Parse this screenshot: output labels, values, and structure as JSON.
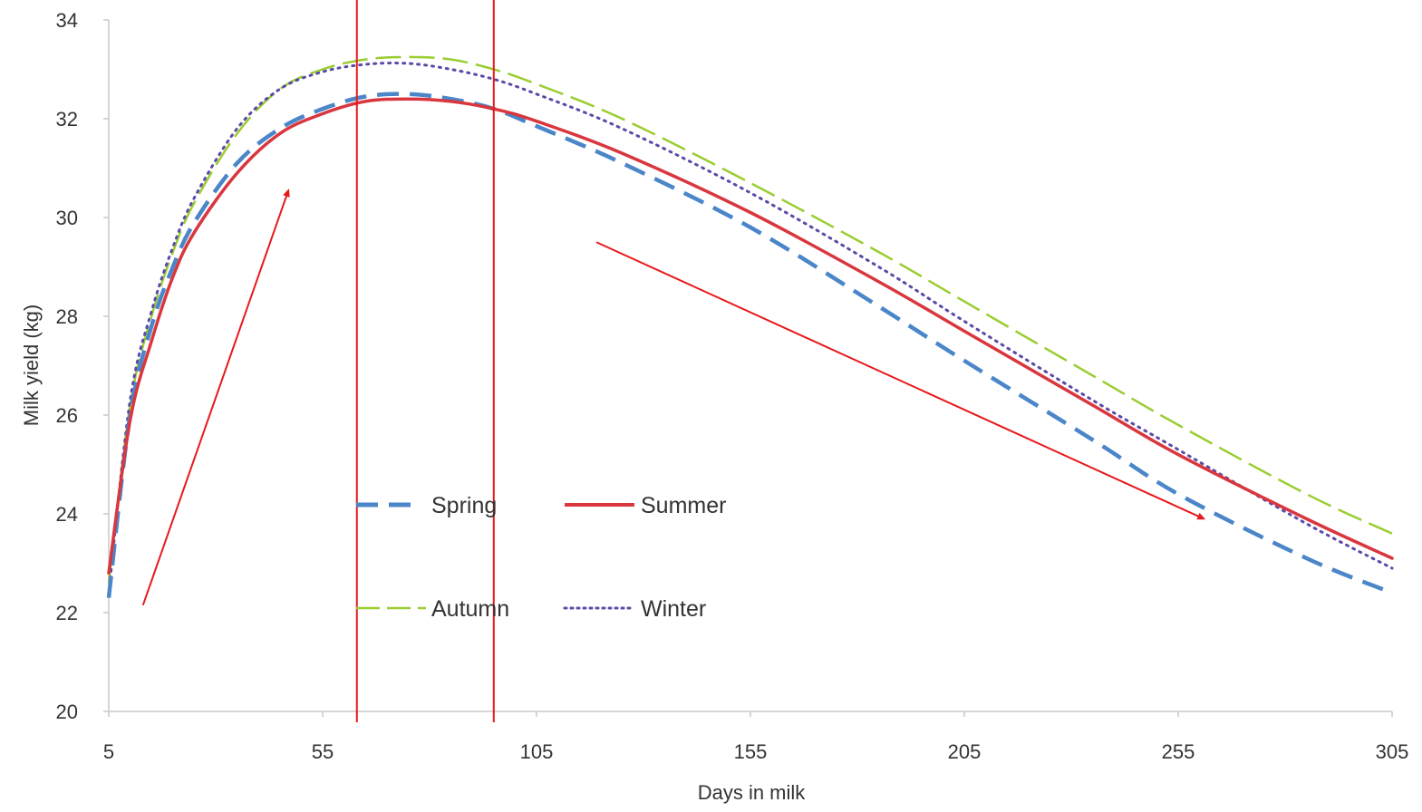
{
  "chart_data": {
    "type": "line",
    "xlabel": "Days in milk",
    "ylabel": "Milk yield (kg)",
    "xlim": [
      5,
      305
    ],
    "ylim": [
      20,
      34
    ],
    "x_ticks": [
      5,
      55,
      105,
      155,
      205,
      255,
      305
    ],
    "y_ticks": [
      20,
      22,
      24,
      26,
      28,
      30,
      32,
      34
    ],
    "grid": false,
    "legend_position": "center-left",
    "x": [
      5,
      10,
      15,
      20,
      25,
      35,
      45,
      55,
      65,
      75,
      85,
      95,
      105,
      125,
      155,
      185,
      205,
      235,
      255,
      285,
      305
    ],
    "series": [
      {
        "name": "Spring",
        "color": "#4a86c8",
        "style": "dashed",
        "values": [
          22.3,
          26.0,
          27.8,
          29.0,
          29.9,
          31.1,
          31.8,
          32.2,
          32.45,
          32.5,
          32.4,
          32.2,
          31.85,
          31.1,
          29.8,
          28.2,
          27.1,
          25.5,
          24.4,
          23.1,
          22.4
        ]
      },
      {
        "name": "Summer",
        "color": "#d9363e",
        "style": "solid",
        "values": [
          22.8,
          25.9,
          27.5,
          28.8,
          29.7,
          30.9,
          31.7,
          32.1,
          32.35,
          32.4,
          32.35,
          32.2,
          31.95,
          31.3,
          30.1,
          28.7,
          27.7,
          26.2,
          25.2,
          23.9,
          23.1
        ]
      },
      {
        "name": "Autumn",
        "color": "#9acd32",
        "style": "longdash",
        "values": [
          22.6,
          26.2,
          28.0,
          29.3,
          30.3,
          31.7,
          32.6,
          33.0,
          33.2,
          33.25,
          33.2,
          33.0,
          32.7,
          32.0,
          30.7,
          29.3,
          28.3,
          26.8,
          25.8,
          24.4,
          23.6
        ]
      },
      {
        "name": "Winter",
        "color": "#5b4aa8",
        "style": "dotted",
        "values": [
          22.4,
          26.3,
          28.1,
          29.4,
          30.4,
          31.8,
          32.6,
          32.95,
          33.1,
          33.12,
          33.0,
          32.8,
          32.5,
          31.8,
          30.5,
          29.0,
          27.9,
          26.3,
          25.3,
          23.8,
          22.9
        ]
      }
    ],
    "annotations": {
      "vertical_lines_x": [
        63,
        95
      ],
      "arrows": [
        {
          "from": [
            13,
            22.15
          ],
          "to": [
            47,
            30.55
          ]
        },
        {
          "from": [
            119,
            29.5
          ],
          "to": [
            261,
            23.9
          ]
        }
      ],
      "annotation_color": "#e8191d"
    }
  }
}
